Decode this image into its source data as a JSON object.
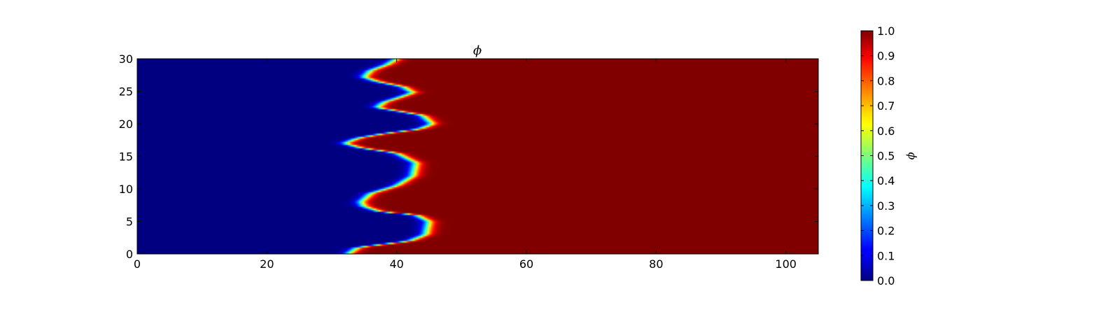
{
  "chart_data": {
    "type": "heatmap",
    "title": "ϕ",
    "xlabel": "",
    "ylabel": "",
    "xlim": [
      0,
      105
    ],
    "ylim": [
      0,
      30
    ],
    "x_ticks": [
      "0",
      "20",
      "40",
      "60",
      "80",
      "100"
    ],
    "x_tick_values": [
      0,
      20,
      40,
      60,
      80,
      100
    ],
    "y_ticks": [
      "0",
      "5",
      "10",
      "15",
      "20",
      "25",
      "30"
    ],
    "y_tick_values": [
      0,
      5,
      10,
      15,
      20,
      25,
      30
    ],
    "colormap": "jet",
    "colorbar": {
      "label": "ϕ",
      "range": [
        0.0,
        1.0
      ],
      "ticks": [
        "0.0",
        "0.1",
        "0.2",
        "0.3",
        "0.4",
        "0.5",
        "0.6",
        "0.7",
        "0.8",
        "0.9",
        "1.0"
      ],
      "tick_values": [
        0.0,
        0.1,
        0.2,
        0.3,
        0.4,
        0.5,
        0.6,
        0.7,
        0.8,
        0.9,
        1.0
      ]
    },
    "field": {
      "left_value": 0.0,
      "right_value": 1.0,
      "interface_x_at_y": [
        [
          0,
          32.5
        ],
        [
          1,
          34
        ],
        [
          2,
          42
        ],
        [
          3,
          44.5
        ],
        [
          5,
          45
        ],
        [
          6,
          43
        ],
        [
          6.5,
          37.5
        ],
        [
          7.3,
          35
        ],
        [
          8,
          34.5
        ],
        [
          9.3,
          36
        ],
        [
          10.5,
          40
        ],
        [
          12,
          42.5
        ],
        [
          14,
          43
        ],
        [
          15.5,
          40
        ],
        [
          16.3,
          34.5
        ],
        [
          17,
          32
        ],
        [
          17.8,
          34
        ],
        [
          18.5,
          38
        ],
        [
          19.2,
          43.5
        ],
        [
          20,
          45.5
        ],
        [
          21.3,
          44
        ],
        [
          22,
          40
        ],
        [
          22.5,
          37
        ],
        [
          23.3,
          38
        ],
        [
          24.1,
          40.5
        ],
        [
          24.8,
          42.5
        ],
        [
          25.7,
          41
        ],
        [
          26.5,
          37
        ],
        [
          27.2,
          35
        ],
        [
          28.2,
          36
        ],
        [
          29.1,
          38.5
        ],
        [
          30,
          40
        ]
      ]
    },
    "grid": false,
    "legend": "colorbar-right"
  }
}
